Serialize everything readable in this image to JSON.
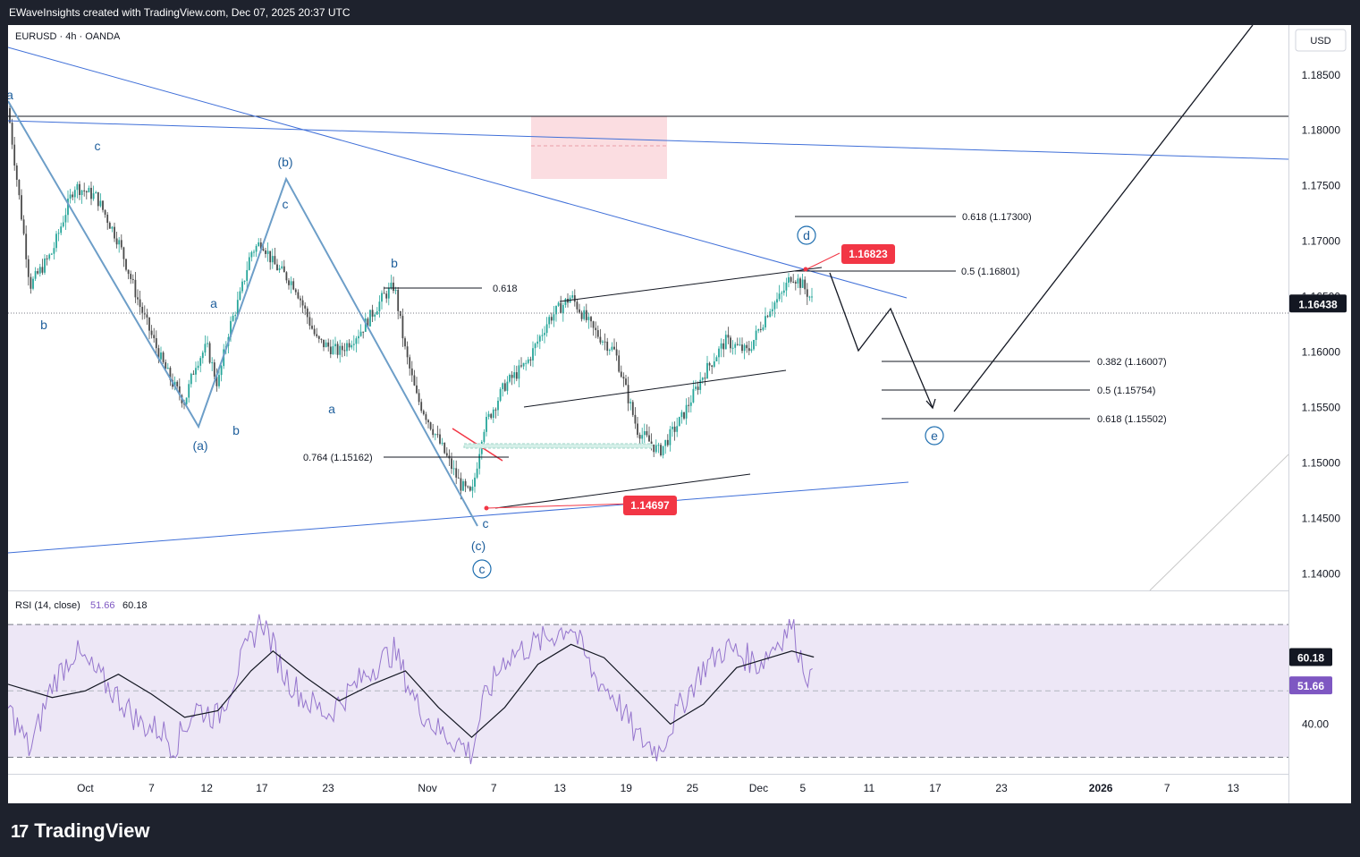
{
  "header": {
    "caption": "EWaveInsights created with TradingView.com, Dec 07, 2025 20:37 UTC"
  },
  "symbol": {
    "label": "EURUSD · 4h · OANDA",
    "currency": "USD"
  },
  "brand": {
    "logo_mark": "17",
    "name": "TradingView"
  },
  "colors": {
    "bull": "#26a69a",
    "bear": "#4a4a4a",
    "wave": "#6d9ec8",
    "channel": "#3f6fd8",
    "rsi_line": "#9575cd",
    "rsi_band": "#ede7f6",
    "label_red": "#f23645",
    "zone_pink": "#fbdde1"
  },
  "chart_data": [
    {
      "type": "candlestick",
      "xlabel": "",
      "ylabel": "",
      "y_ticks": [
        "1.18500",
        "1.18000",
        "1.17500",
        "1.17000",
        "1.16500",
        "1.16000",
        "1.15500",
        "1.15000",
        "1.14500",
        "1.14000"
      ],
      "x_ticks": [
        {
          "label": "Oct",
          "date": "2025-10-01"
        },
        {
          "label": "7",
          "date": "2025-10-07"
        },
        {
          "label": "12",
          "date": "2025-10-12"
        },
        {
          "label": "17",
          "date": "2025-10-17"
        },
        {
          "label": "23",
          "date": "2025-10-23"
        },
        {
          "label": "Nov",
          "date": "2025-11-01"
        },
        {
          "label": "7",
          "date": "2025-11-07"
        },
        {
          "label": "13",
          "date": "2025-11-13"
        },
        {
          "label": "19",
          "date": "2025-11-19"
        },
        {
          "label": "25",
          "date": "2025-11-25"
        },
        {
          "label": "Dec",
          "date": "2025-12-01"
        },
        {
          "label": "5",
          "date": "2025-12-05"
        },
        {
          "label": "11",
          "date": "2025-12-11"
        },
        {
          "label": "17",
          "date": "2025-12-17"
        },
        {
          "label": "23",
          "date": "2025-12-23"
        },
        {
          "label": "2026",
          "date": "2026-01-01"
        },
        {
          "label": "7",
          "date": "2026-01-07"
        },
        {
          "label": "13",
          "date": "2026-01-13"
        }
      ],
      "ylim": [
        1.1385,
        1.1895
      ],
      "xlim": [
        "2025-09-24",
        "2026-01-18"
      ],
      "price_path": [
        [
          "2025-09-24",
          1.182
        ],
        [
          "2025-09-26",
          1.166
        ],
        [
          "2025-09-28",
          1.169
        ],
        [
          "2025-09-30",
          1.175
        ],
        [
          "2025-10-02",
          1.174
        ],
        [
          "2025-10-04",
          1.17
        ],
        [
          "2025-10-06",
          1.164
        ],
        [
          "2025-10-08",
          1.159
        ],
        [
          "2025-10-09",
          1.157
        ],
        [
          "2025-10-10",
          1.1555
        ],
        [
          "2025-10-11",
          1.159
        ],
        [
          "2025-10-12",
          1.1605
        ],
        [
          "2025-10-13",
          1.157
        ],
        [
          "2025-10-14",
          1.162
        ],
        [
          "2025-10-15",
          1.165
        ],
        [
          "2025-10-16",
          1.169
        ],
        [
          "2025-10-17",
          1.17
        ],
        [
          "2025-10-18",
          1.168
        ],
        [
          "2025-10-20",
          1.166
        ],
        [
          "2025-10-22",
          1.161
        ],
        [
          "2025-10-24",
          1.16
        ],
        [
          "2025-10-26",
          1.162
        ],
        [
          "2025-10-28",
          1.165
        ],
        [
          "2025-10-29",
          1.166
        ],
        [
          "2025-10-30",
          1.16
        ],
        [
          "2025-10-31",
          1.156
        ],
        [
          "2025-11-02",
          1.152
        ],
        [
          "2025-11-03",
          1.15
        ],
        [
          "2025-11-04",
          1.148
        ],
        [
          "2025-11-05",
          1.147
        ],
        [
          "2025-11-06",
          1.153
        ],
        [
          "2025-11-08",
          1.157
        ],
        [
          "2025-11-10",
          1.159
        ],
        [
          "2025-11-12",
          1.163
        ],
        [
          "2025-11-14",
          1.165
        ],
        [
          "2025-11-16",
          1.162
        ],
        [
          "2025-11-18",
          1.16
        ],
        [
          "2025-11-20",
          1.153
        ],
        [
          "2025-11-22",
          1.151
        ],
        [
          "2025-11-24",
          1.154
        ],
        [
          "2025-11-26",
          1.158
        ],
        [
          "2025-11-28",
          1.161
        ],
        [
          "2025-11-30",
          1.16
        ],
        [
          "2025-12-01",
          1.162
        ],
        [
          "2025-12-02",
          1.164
        ],
        [
          "2025-12-03",
          1.165
        ],
        [
          "2025-12-04",
          1.167
        ],
        [
          "2025-12-05",
          1.166
        ],
        [
          "2025-12-06",
          1.1644
        ]
      ],
      "last_price": "1.16438",
      "annotations": {
        "wave_labels": [
          "a",
          "c",
          "b",
          "(b)",
          "c",
          "a",
          "(a)",
          "b",
          "b",
          "a",
          "c",
          "(c)",
          "c",
          "d",
          "e"
        ],
        "fib_labels": [
          "0.618 (1.17300)",
          "0.5 (1.16801)",
          "0.618",
          "0.764 (1.15162)",
          "0.382 (1.16007)",
          "0.5 (1.15754)",
          "0.618 (1.15502)"
        ],
        "price_labels": [
          "1.16823",
          "1.14697"
        ]
      },
      "grid": false
    },
    {
      "type": "line",
      "title": "RSI (14, close)",
      "series": [
        {
          "name": "RSI",
          "last": "51.66"
        },
        {
          "name": "RSI-based MA",
          "last": "60.18"
        }
      ],
      "y_ticks": [
        "60.00",
        "40.00"
      ],
      "band": [
        30,
        70
      ],
      "ylim": [
        25,
        80
      ],
      "xlim": [
        "2025-09-24",
        "2026-01-18"
      ],
      "rsi_path": [
        [
          "2025-09-24",
          45
        ],
        [
          "2025-09-26",
          32
        ],
        [
          "2025-09-28",
          52
        ],
        [
          "2025-09-30",
          62
        ],
        [
          "2025-10-02",
          55
        ],
        [
          "2025-10-04",
          48
        ],
        [
          "2025-10-06",
          40
        ],
        [
          "2025-10-08",
          38
        ],
        [
          "2025-10-09",
          33
        ],
        [
          "2025-10-11",
          45
        ],
        [
          "2025-10-13",
          42
        ],
        [
          "2025-10-15",
          58
        ],
        [
          "2025-10-17",
          72
        ],
        [
          "2025-10-19",
          55
        ],
        [
          "2025-10-21",
          47
        ],
        [
          "2025-10-23",
          43
        ],
        [
          "2025-10-25",
          50
        ],
        [
          "2025-10-27",
          57
        ],
        [
          "2025-10-29",
          62
        ],
        [
          "2025-10-31",
          46
        ],
        [
          "2025-11-02",
          38
        ],
        [
          "2025-11-04",
          34
        ],
        [
          "2025-11-05",
          31
        ],
        [
          "2025-11-06",
          46
        ],
        [
          "2025-11-08",
          60
        ],
        [
          "2025-11-10",
          63
        ],
        [
          "2025-11-12",
          66
        ],
        [
          "2025-11-14",
          70
        ],
        [
          "2025-11-16",
          55
        ],
        [
          "2025-11-18",
          48
        ],
        [
          "2025-11-20",
          36
        ],
        [
          "2025-11-22",
          32
        ],
        [
          "2025-11-24",
          46
        ],
        [
          "2025-11-26",
          57
        ],
        [
          "2025-11-28",
          63
        ],
        [
          "2025-11-30",
          60
        ],
        [
          "2025-12-01",
          58
        ],
        [
          "2025-12-03",
          66
        ],
        [
          "2025-12-04",
          70
        ],
        [
          "2025-12-05",
          58
        ],
        [
          "2025-12-06",
          51.66
        ]
      ],
      "ma_path": [
        [
          "2025-09-24",
          52
        ],
        [
          "2025-09-28",
          48
        ],
        [
          "2025-10-01",
          50
        ],
        [
          "2025-10-04",
          55
        ],
        [
          "2025-10-07",
          49
        ],
        [
          "2025-10-10",
          42
        ],
        [
          "2025-10-13",
          44
        ],
        [
          "2025-10-16",
          56
        ],
        [
          "2025-10-18",
          62
        ],
        [
          "2025-10-21",
          54
        ],
        [
          "2025-10-24",
          47
        ],
        [
          "2025-10-27",
          52
        ],
        [
          "2025-10-30",
          56
        ],
        [
          "2025-11-02",
          45
        ],
        [
          "2025-11-05",
          36
        ],
        [
          "2025-11-08",
          45
        ],
        [
          "2025-11-11",
          58
        ],
        [
          "2025-11-14",
          64
        ],
        [
          "2025-11-17",
          60
        ],
        [
          "2025-11-20",
          50
        ],
        [
          "2025-11-23",
          40
        ],
        [
          "2025-11-26",
          46
        ],
        [
          "2025-11-29",
          57
        ],
        [
          "2025-12-02",
          60
        ],
        [
          "2025-12-04",
          62
        ],
        [
          "2025-12-06",
          60.18
        ]
      ]
    }
  ]
}
